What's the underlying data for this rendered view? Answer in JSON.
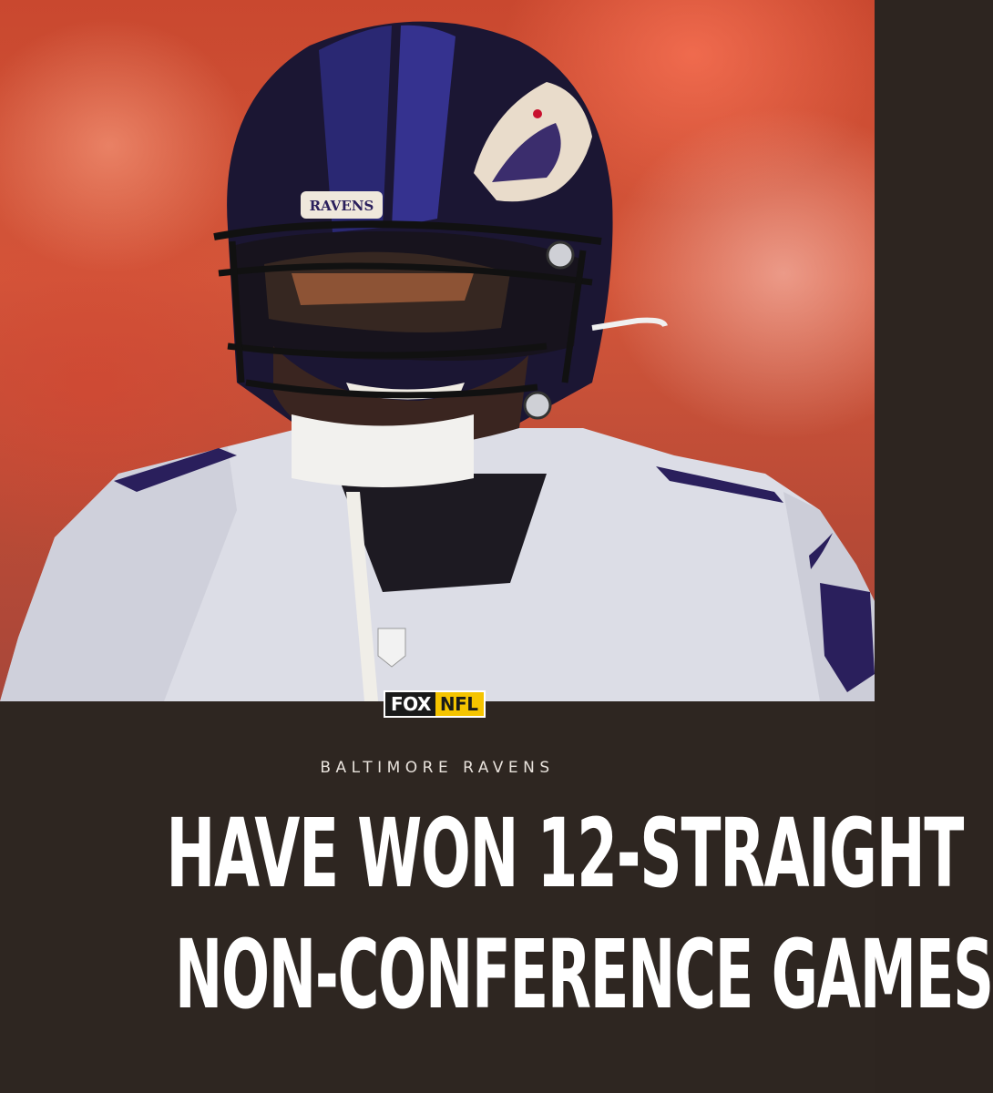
{
  "brand": {
    "fox_label": "FOX",
    "nfl_label": "NFL",
    "fox_color": "#1a1a1a",
    "nfl_color": "#f5c400"
  },
  "photo": {
    "description_icon": "player-helmet-photo",
    "helmet_label": "RAVENS"
  },
  "post": {
    "team_name": "BALTIMORE RAVENS",
    "headline_line1": "HAVE WON 12-STRAIGHT",
    "headline_line2": "NON-CONFERENCE GAMES"
  },
  "colors": {
    "background_panel": "#2e2621",
    "headline_text": "#ffffff",
    "eyebrow_text": "#e8e2dc",
    "helmet_purple": "#2a1f5c"
  }
}
